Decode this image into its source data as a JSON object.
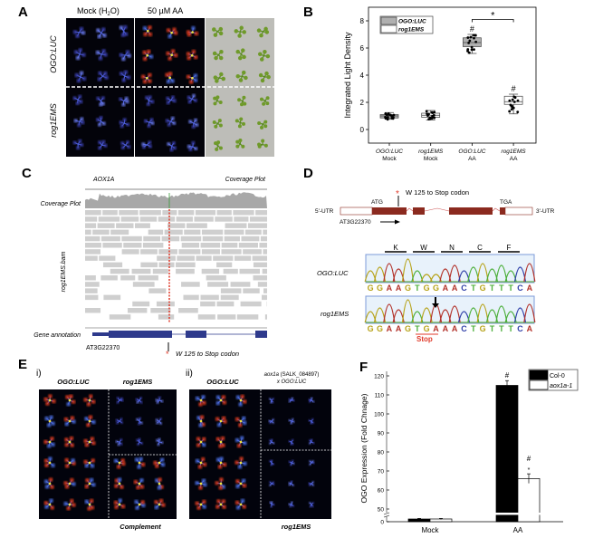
{
  "panels": {
    "A": {
      "label": "A",
      "col_headers": [
        "Mock (H",
        "2",
        "O)",
        "50 µM AA"
      ],
      "row_labels": [
        "OGO:LUC",
        "rog1EMS"
      ]
    },
    "B": {
      "label": "B"
    },
    "C": {
      "label": "C",
      "gene_title": "AOX1A",
      "track_title": "Coverage Plot",
      "coverage_label": "Coverage Plot",
      "bam_label": "rog1EMS.bam",
      "annotation_label": "Gene annotation",
      "gene_id": "AT3G22370",
      "mutation_star": "*",
      "mutation_text": "W 125 to Stop codon"
    },
    "D": {
      "label": "D",
      "mutation_star": "*",
      "mutation_text": "W 125 to Stop codon",
      "atg": "ATG",
      "tga": "TGA",
      "utr5": "5'-UTR",
      "utr3": "3'-UTR",
      "gene_id": "AT3G22370",
      "amino_acids": [
        "K",
        "W",
        "N",
        "C",
        "F"
      ],
      "traces": [
        {
          "name": "OGO:LUC",
          "sequence": "GGAAGTGGAACTGTTTCA"
        },
        {
          "name": "rog1EMS",
          "sequence": "GGAAGTGAAACTGTTTCA"
        }
      ],
      "stop_label": "Stop",
      "base_colors": {
        "G": "#b7a31a",
        "A": "#b3322a",
        "T": "#4caf3a",
        "C": "#2f3fa8"
      }
    },
    "E": {
      "label": "E",
      "sub_i": "i)",
      "sub_ii": "ii)",
      "i_headers": [
        "OGO:LUC",
        "rog1EMS"
      ],
      "i_footer": "Complement",
      "ii_headers": [
        "OGO:LUC",
        "aox1a",
        " (SALK_084897)",
        "x OGO:LUC"
      ],
      "ii_footer": "rog1EMS"
    },
    "F": {
      "label": "F"
    }
  },
  "colors": {
    "exon": "#8b2a1f",
    "gene_annotation": "#2e3a8c",
    "mutation": "#e03a2a",
    "read": "#cfcfcf",
    "coverage": "#a8a8a8"
  },
  "chart_data": [
    {
      "panel": "B",
      "type": "box",
      "ylabel": "Integrated Light Density",
      "ylim": [
        -1,
        9
      ],
      "yticks": [
        0,
        2,
        4,
        6,
        8
      ],
      "categories": [
        [
          "OGO:LUC",
          "Mock"
        ],
        [
          "rog1EMS",
          "Mock"
        ],
        [
          "OGO:LUC",
          "AA"
        ],
        [
          "rog1EMS",
          "AA"
        ]
      ],
      "legend": [
        {
          "name": "OGO:LUC",
          "color": "#b0b0b0"
        },
        {
          "name": "rog1EMS",
          "color": "#ffffff"
        }
      ],
      "legend_position": "top-left",
      "boxes": [
        {
          "min": 0.75,
          "q1": 0.85,
          "median": 1.0,
          "q3": 1.1,
          "max": 1.25,
          "group": 0
        },
        {
          "min": 0.7,
          "q1": 0.9,
          "median": 1.05,
          "q3": 1.2,
          "max": 1.4,
          "group": 1
        },
        {
          "min": 5.6,
          "q1": 6.1,
          "median": 6.4,
          "q3": 6.75,
          "max": 7.0,
          "group": 0
        },
        {
          "min": 1.15,
          "q1": 1.85,
          "median": 2.05,
          "q3": 2.45,
          "max": 2.6,
          "group": 1
        }
      ],
      "annotations": [
        {
          "text": "#",
          "category": 2
        },
        {
          "text": "#",
          "category": 3
        },
        {
          "text": "*",
          "between": [
            2,
            3
          ]
        }
      ]
    },
    {
      "panel": "F",
      "type": "bar",
      "ylabel": "OGO Expression (Fold Chnage)",
      "categories": [
        "Mock",
        "AA"
      ],
      "yticks": [
        0,
        50,
        60,
        70,
        80,
        90,
        100,
        110,
        120
      ],
      "axis_break": [
        2,
        50
      ],
      "series": [
        {
          "name": "Col-0",
          "color": "#000000",
          "values": [
            1,
            115
          ],
          "errors": [
            0.2,
            2.5
          ]
        },
        {
          "name": "aox1a-1",
          "color": "#ffffff",
          "values": [
            1,
            66
          ],
          "errors": [
            0.2,
            2.5
          ]
        }
      ],
      "legend_position": "top-right",
      "annotations": [
        {
          "text": "#",
          "category": 1,
          "series": 0
        },
        {
          "text": "#",
          "category": 1,
          "series": 1
        },
        {
          "text": "*",
          "category": 1,
          "series": 1
        }
      ]
    }
  ]
}
